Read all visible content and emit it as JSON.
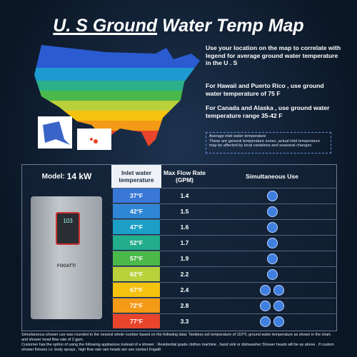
{
  "header": {
    "title_underlined": "U. S Ground",
    "title_rest": "Water Temp Map"
  },
  "info": {
    "paragraphs": [
      "Use your location on the map to correlate with legend for average ground water temperature in the U . S",
      "For Hawaii and Puerto Rico , use ground water temperature of 75  F",
      "For Canada and Alaska , use ground water temperature range 35-42  F"
    ],
    "legend_title": "Average inlet water temperature",
    "legend_text": "These are general temperature zones ,actual inlet temperature may be affected by local variations and seasonal changes"
  },
  "product": {
    "brand": "FOGATTI",
    "display": "103"
  },
  "table": {
    "model_label": "Model:",
    "model": "14 kW",
    "headers": [
      "Inlet water temperature",
      "Max Flow Rate (GPM)",
      "Simultaneous Use"
    ],
    "rows": [
      {
        "temp": "37°F",
        "color": "#3a78d8",
        "flow": 1.4,
        "uses": 1
      },
      {
        "temp": "42°F",
        "color": "#2f86d4",
        "flow": 1.5,
        "uses": 1
      },
      {
        "temp": "47°F",
        "color": "#1c9fc6",
        "flow": 1.6,
        "uses": 1
      },
      {
        "temp": "52°F",
        "color": "#22ad8c",
        "flow": 1.7,
        "uses": 1
      },
      {
        "temp": "57°F",
        "color": "#4bb84a",
        "flow": 1.9,
        "uses": 1
      },
      {
        "temp": "62°F",
        "color": "#b9d13a",
        "flow": 2.2,
        "uses": 1
      },
      {
        "temp": "67°F",
        "color": "#f4c20f",
        "flow": 2.4,
        "uses": 2
      },
      {
        "temp": "72°F",
        "color": "#f39a16",
        "flow": 2.8,
        "uses": 2
      },
      {
        "temp": "77°F",
        "color": "#e8452c",
        "flow": 3.3,
        "uses": 2
      }
    ]
  },
  "footer": [
    "Simultaneous shower use was rounded to the nearest whole number based on the following data: Tankless set temperature of 110°F, ground water temperature as shown in the chart, and shower head flow rate of 2 gpm.",
    "Customer has the option of using the following appliances instead of a shower : Residential grade clothes machine , hand sink or dishwasher Shower heads will be as above . If custom shower fixtures i.e. body sprays , high flow rate rain heads are use contact Fogatti"
  ]
}
